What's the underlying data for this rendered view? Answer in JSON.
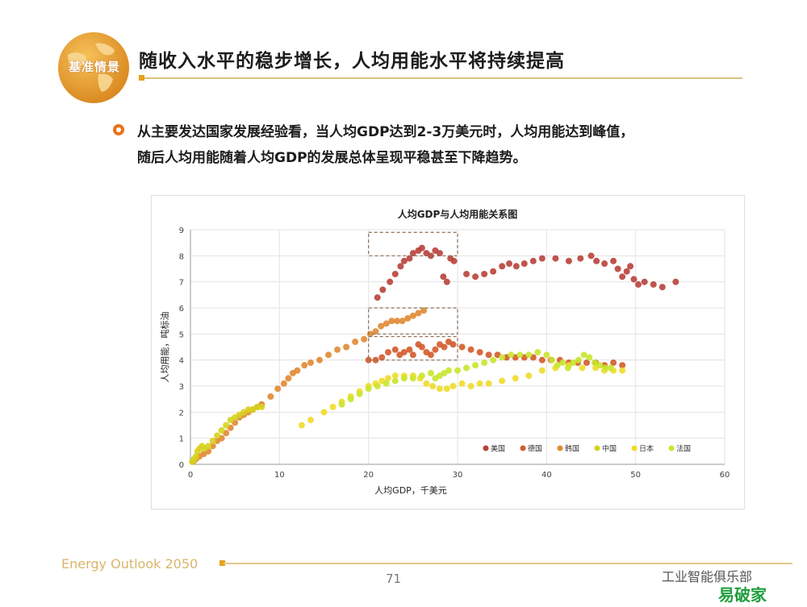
{
  "header": {
    "logo_text": "基准情景",
    "title": "随收入水平的稳步增长，人均用能水平将持续提高"
  },
  "bullet": {
    "line1": "从主要发达国家发展经验看，当人均GDP达到2-3万美元时，人均用能达到峰值，",
    "line2": "随后人均用能随着人均GDP的发展总体呈现平稳甚至下降趋势。"
  },
  "footer": {
    "brand": "Energy Outlook 2050",
    "page": "71",
    "watermark": "工业智能俱乐部",
    "watermark_logo": "易破家"
  },
  "colors": {
    "title_rule": "#d9c27a",
    "accent_orange": "#e8731c",
    "logo_gold": "#e8a11c"
  },
  "chart_data": {
    "type": "scatter",
    "title": "人均GDP与人均用能关系图",
    "xlabel": "人均GDP，千美元",
    "ylabel": "人均用能，吨标油",
    "xlim": [
      0,
      60
    ],
    "ylim": [
      0,
      9
    ],
    "xticks": [
      "0",
      "10",
      "20",
      "30",
      "40",
      "50",
      "60"
    ],
    "yticks": [
      "0",
      "1",
      "2",
      "3",
      "4",
      "5",
      "6",
      "7",
      "8",
      "9"
    ],
    "grid": true,
    "legend_position": "bottom-right",
    "highlight_boxes": [
      {
        "x": [
          20,
          30
        ],
        "y": [
          8.0,
          8.9
        ]
      },
      {
        "x": [
          20,
          30
        ],
        "y": [
          5.0,
          6.0
        ]
      },
      {
        "x": [
          20,
          30
        ],
        "y": [
          4.0,
          4.9
        ]
      }
    ],
    "series": [
      {
        "name": "美国",
        "color": "#b8413a",
        "points": [
          [
            21,
            6.4
          ],
          [
            21.6,
            6.7
          ],
          [
            22.4,
            7.0
          ],
          [
            23,
            7.3
          ],
          [
            23.6,
            7.6
          ],
          [
            24,
            7.8
          ],
          [
            24.6,
            7.9
          ],
          [
            25,
            8.1
          ],
          [
            25.6,
            8.2
          ],
          [
            26,
            8.3
          ],
          [
            26.5,
            8.1
          ],
          [
            27,
            8.0
          ],
          [
            27.5,
            8.2
          ],
          [
            28,
            8.1
          ],
          [
            28.4,
            7.2
          ],
          [
            28.8,
            7.0
          ],
          [
            29.2,
            7.9
          ],
          [
            29.6,
            7.8
          ],
          [
            31,
            7.3
          ],
          [
            32,
            7.2
          ],
          [
            33,
            7.3
          ],
          [
            34,
            7.4
          ],
          [
            35,
            7.6
          ],
          [
            35.8,
            7.7
          ],
          [
            36.6,
            7.6
          ],
          [
            37.5,
            7.7
          ],
          [
            38.5,
            7.8
          ],
          [
            39.5,
            7.9
          ],
          [
            41,
            7.9
          ],
          [
            42.5,
            7.8
          ],
          [
            43.8,
            7.9
          ],
          [
            45,
            8.0
          ],
          [
            45.6,
            7.8
          ],
          [
            46.5,
            7.7
          ],
          [
            47.5,
            7.8
          ],
          [
            48,
            7.5
          ],
          [
            48.5,
            7.2
          ],
          [
            49,
            7.4
          ],
          [
            49.4,
            7.6
          ],
          [
            49.8,
            7.1
          ],
          [
            50.3,
            6.9
          ],
          [
            51,
            7.0
          ],
          [
            52,
            6.9
          ],
          [
            53,
            6.8
          ],
          [
            54.5,
            7.0
          ]
        ]
      },
      {
        "name": "德国",
        "color": "#d35a2b",
        "points": [
          [
            20,
            4.0
          ],
          [
            20.8,
            4.0
          ],
          [
            21.5,
            4.1
          ],
          [
            22.2,
            4.3
          ],
          [
            23,
            4.4
          ],
          [
            23.5,
            4.2
          ],
          [
            24,
            4.3
          ],
          [
            24.6,
            4.4
          ],
          [
            25,
            4.2
          ],
          [
            25.6,
            4.6
          ],
          [
            26,
            4.5
          ],
          [
            26.5,
            4.3
          ],
          [
            27,
            4.2
          ],
          [
            27.5,
            4.4
          ],
          [
            28,
            4.6
          ],
          [
            28.5,
            4.5
          ],
          [
            29,
            4.7
          ],
          [
            29.5,
            4.6
          ],
          [
            30.5,
            4.5
          ],
          [
            31.5,
            4.4
          ],
          [
            32.5,
            4.3
          ],
          [
            33.5,
            4.2
          ],
          [
            34.5,
            4.2
          ],
          [
            35.5,
            4.1
          ],
          [
            36.5,
            4.1
          ],
          [
            37.5,
            4.1
          ],
          [
            38.5,
            4.1
          ],
          [
            39.5,
            4.0
          ],
          [
            40.5,
            4.0
          ],
          [
            41.5,
            4.0
          ],
          [
            42.5,
            3.9
          ],
          [
            43.5,
            3.9
          ],
          [
            44.5,
            3.9
          ],
          [
            45.5,
            3.9
          ],
          [
            46.5,
            3.8
          ],
          [
            47.5,
            3.9
          ],
          [
            48.5,
            3.8
          ]
        ]
      },
      {
        "name": "韩国",
        "color": "#e08a33",
        "points": [
          [
            0.3,
            0.1
          ],
          [
            0.6,
            0.2
          ],
          [
            1,
            0.3
          ],
          [
            1.5,
            0.4
          ],
          [
            2,
            0.5
          ],
          [
            2.5,
            0.7
          ],
          [
            3,
            0.9
          ],
          [
            3.5,
            1.0
          ],
          [
            4,
            1.2
          ],
          [
            4.5,
            1.4
          ],
          [
            5,
            1.6
          ],
          [
            5.5,
            1.8
          ],
          [
            6,
            1.9
          ],
          [
            6.5,
            2.0
          ],
          [
            7,
            2.1
          ],
          [
            7.5,
            2.2
          ],
          [
            8,
            2.3
          ],
          [
            9,
            2.6
          ],
          [
            9.8,
            2.9
          ],
          [
            10.5,
            3.1
          ],
          [
            11,
            3.3
          ],
          [
            11.5,
            3.5
          ],
          [
            12,
            3.6
          ],
          [
            12.8,
            3.8
          ],
          [
            13.5,
            3.9
          ],
          [
            14.5,
            4.0
          ],
          [
            15.5,
            4.2
          ],
          [
            16.5,
            4.4
          ],
          [
            17.5,
            4.5
          ],
          [
            18.5,
            4.7
          ],
          [
            19.5,
            4.8
          ],
          [
            20.2,
            5.0
          ],
          [
            20.8,
            5.1
          ],
          [
            21.4,
            5.3
          ],
          [
            22,
            5.4
          ],
          [
            22.6,
            5.5
          ],
          [
            23.2,
            5.5
          ],
          [
            23.8,
            5.5
          ],
          [
            24.4,
            5.6
          ],
          [
            25,
            5.7
          ],
          [
            25.6,
            5.8
          ],
          [
            26.2,
            5.9
          ]
        ]
      },
      {
        "name": "中国",
        "color": "#d6d21e",
        "points": [
          [
            0.2,
            0.1
          ],
          [
            0.4,
            0.2
          ],
          [
            0.6,
            0.3
          ],
          [
            0.8,
            0.5
          ],
          [
            1,
            0.6
          ],
          [
            1.3,
            0.7
          ],
          [
            1.6,
            0.6
          ],
          [
            2,
            0.7
          ],
          [
            2.5,
            0.9
          ],
          [
            3,
            1.1
          ],
          [
            3.5,
            1.3
          ],
          [
            4,
            1.5
          ],
          [
            4.5,
            1.7
          ],
          [
            5,
            1.8
          ],
          [
            5.5,
            1.9
          ],
          [
            6,
            2.0
          ],
          [
            6.5,
            2.1
          ],
          [
            7,
            2.1
          ],
          [
            7.5,
            2.2
          ],
          [
            8,
            2.2
          ]
        ]
      },
      {
        "name": "日本",
        "color": "#f0dc2a",
        "points": [
          [
            12.5,
            1.5
          ],
          [
            13.5,
            1.7
          ],
          [
            15,
            2.0
          ],
          [
            16,
            2.2
          ],
          [
            17,
            2.4
          ],
          [
            18,
            2.6
          ],
          [
            19,
            2.8
          ],
          [
            20,
            3.0
          ],
          [
            20.8,
            3.1
          ],
          [
            21.5,
            3.2
          ],
          [
            22.2,
            3.3
          ],
          [
            23,
            3.4
          ],
          [
            24,
            3.4
          ],
          [
            25,
            3.4
          ],
          [
            25.8,
            3.3
          ],
          [
            26.5,
            3.1
          ],
          [
            27.2,
            3.0
          ],
          [
            28,
            2.9
          ],
          [
            28.8,
            2.9
          ],
          [
            29.5,
            3.0
          ],
          [
            30.5,
            3.1
          ],
          [
            31.5,
            3.0
          ],
          [
            32.5,
            3.1
          ],
          [
            33.5,
            3.1
          ],
          [
            35,
            3.2
          ],
          [
            36.5,
            3.3
          ],
          [
            38,
            3.4
          ],
          [
            39.5,
            3.6
          ],
          [
            41,
            3.7
          ],
          [
            42.5,
            3.8
          ],
          [
            44,
            3.7
          ],
          [
            45.5,
            3.7
          ],
          [
            46.5,
            3.6
          ],
          [
            47.5,
            3.6
          ],
          [
            48.5,
            3.6
          ]
        ]
      },
      {
        "name": "法国",
        "color": "#c9e62e",
        "points": [
          [
            17,
            2.3
          ],
          [
            18,
            2.5
          ],
          [
            19,
            2.7
          ],
          [
            20,
            2.9
          ],
          [
            21,
            3.0
          ],
          [
            22,
            3.1
          ],
          [
            23,
            3.2
          ],
          [
            24,
            3.3
          ],
          [
            25,
            3.3
          ],
          [
            26,
            3.4
          ],
          [
            27,
            3.5
          ],
          [
            27.5,
            3.3
          ],
          [
            28,
            3.4
          ],
          [
            28.5,
            3.5
          ],
          [
            29,
            3.6
          ],
          [
            30,
            3.6
          ],
          [
            31,
            3.7
          ],
          [
            32,
            3.8
          ],
          [
            33,
            3.9
          ],
          [
            34,
            4.0
          ],
          [
            35,
            4.1
          ],
          [
            36,
            4.2
          ],
          [
            37,
            4.2
          ],
          [
            38,
            4.2
          ],
          [
            39,
            4.3
          ],
          [
            40,
            4.2
          ],
          [
            40.6,
            4.0
          ],
          [
            41.2,
            3.8
          ],
          [
            41.8,
            3.9
          ],
          [
            42.4,
            3.7
          ],
          [
            43,
            3.9
          ],
          [
            43.6,
            4.0
          ],
          [
            44.2,
            4.2
          ],
          [
            44.8,
            4.1
          ],
          [
            45.4,
            3.9
          ],
          [
            46,
            3.8
          ],
          [
            46.6,
            3.7
          ],
          [
            47.2,
            3.7
          ]
        ]
      }
    ]
  }
}
